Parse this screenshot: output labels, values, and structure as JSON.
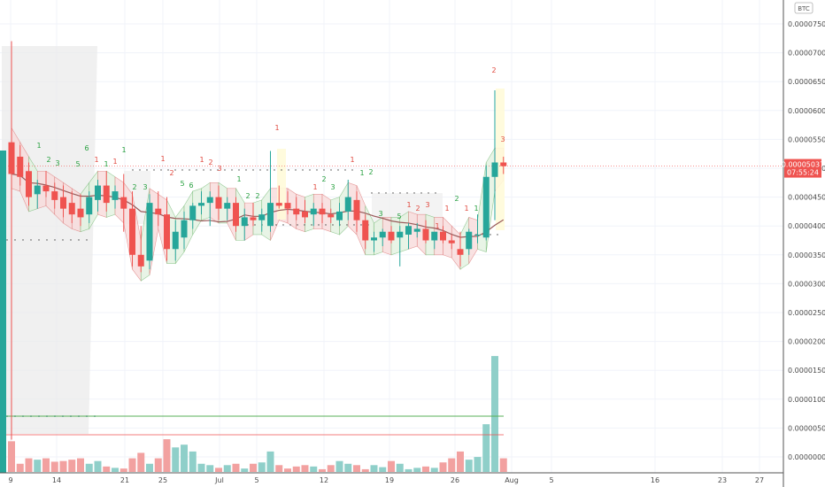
{
  "currency_badge": "BTC",
  "last_price_label": {
    "price": "0.00005037",
    "countdown": "07:55:24"
  },
  "colors": {
    "up": "#26a69a",
    "down": "#ef5350",
    "volume_up": "#8fcfc9",
    "volume_down": "#f2a1a0",
    "ma": "#9a5a5a",
    "resistance": "#58b058",
    "volume_avg": "#ef5350",
    "signal_up": "#27a03f",
    "signal_down": "#e0483e"
  },
  "chart_data": {
    "type": "candlestick",
    "y_axis": {
      "min": 1e-07,
      "max": 7.8e-06,
      "ticks": [
        "0.00007500",
        "0.00007000",
        "0.00006500",
        "0.00006000",
        "0.00005500",
        "0.00005000",
        "0.00004500",
        "0.00004000",
        "0.00003500",
        "0.00003000",
        "0.00002500",
        "0.00002000",
        "0.00001500",
        "0.00001000",
        "0.00000500",
        "0.00000000"
      ]
    },
    "x_axis": {
      "ticks": [
        "9",
        "14",
        "21",
        "25",
        "Jul",
        "5",
        "12",
        "19",
        "26",
        "Aug",
        "5",
        "16",
        "23",
        "27"
      ]
    },
    "resistance_level": 7.05e-06,
    "volume_average": 2.8e-07,
    "candles": [
      {
        "o": 5.45,
        "h": 7.2,
        "l": 0.3,
        "c": 4.9
      },
      {
        "o": 5.2,
        "h": 5.4,
        "l": 4.7,
        "c": 4.85
      },
      {
        "o": 4.95,
        "h": 5.1,
        "l": 4.35,
        "c": 4.5
      },
      {
        "o": 4.55,
        "h": 4.8,
        "l": 4.3,
        "c": 4.7
      },
      {
        "o": 4.7,
        "h": 4.95,
        "l": 4.5,
        "c": 4.6
      },
      {
        "o": 4.6,
        "h": 4.75,
        "l": 4.3,
        "c": 4.45
      },
      {
        "o": 4.5,
        "h": 4.7,
        "l": 4.15,
        "c": 4.3
      },
      {
        "o": 4.4,
        "h": 4.6,
        "l": 4.05,
        "c": 4.2
      },
      {
        "o": 4.3,
        "h": 4.55,
        "l": 4.0,
        "c": 4.15
      },
      {
        "o": 4.2,
        "h": 4.6,
        "l": 4.05,
        "c": 4.5
      },
      {
        "o": 4.45,
        "h": 4.8,
        "l": 4.25,
        "c": 4.7
      },
      {
        "o": 4.7,
        "h": 4.95,
        "l": 4.25,
        "c": 4.4
      },
      {
        "o": 4.45,
        "h": 4.7,
        "l": 4.3,
        "c": 4.6
      },
      {
        "o": 4.5,
        "h": 4.9,
        "l": 3.9,
        "c": 4.3
      },
      {
        "o": 4.3,
        "h": 4.6,
        "l": 3.3,
        "c": 3.5
      },
      {
        "o": 3.5,
        "h": 4.0,
        "l": 3.2,
        "c": 3.3
      },
      {
        "o": 3.4,
        "h": 4.55,
        "l": 3.25,
        "c": 4.4
      },
      {
        "o": 4.3,
        "h": 4.6,
        "l": 4.0,
        "c": 4.2
      },
      {
        "o": 4.2,
        "h": 4.5,
        "l": 3.4,
        "c": 3.6
      },
      {
        "o": 3.6,
        "h": 4.1,
        "l": 3.4,
        "c": 3.9
      },
      {
        "o": 3.8,
        "h": 4.25,
        "l": 3.6,
        "c": 4.1
      },
      {
        "o": 4.1,
        "h": 4.4,
        "l": 3.95,
        "c": 4.35
      },
      {
        "o": 4.35,
        "h": 4.6,
        "l": 4.2,
        "c": 4.4
      },
      {
        "o": 4.4,
        "h": 4.6,
        "l": 4.0,
        "c": 4.5
      },
      {
        "o": 4.5,
        "h": 4.7,
        "l": 4.1,
        "c": 4.3
      },
      {
        "o": 4.3,
        "h": 4.5,
        "l": 4.1,
        "c": 4.4
      },
      {
        "o": 4.4,
        "h": 4.5,
        "l": 3.9,
        "c": 4.0
      },
      {
        "o": 4.0,
        "h": 4.3,
        "l": 3.75,
        "c": 4.15
      },
      {
        "o": 4.15,
        "h": 4.4,
        "l": 4.0,
        "c": 4.1
      },
      {
        "o": 4.1,
        "h": 4.3,
        "l": 3.9,
        "c": 4.2
      },
      {
        "o": 4.0,
        "h": 5.3,
        "l": 3.9,
        "c": 4.4
      },
      {
        "o": 4.4,
        "h": 4.7,
        "l": 4.3,
        "c": 4.35
      },
      {
        "o": 4.4,
        "h": 4.6,
        "l": 4.2,
        "c": 4.3
      },
      {
        "o": 4.3,
        "h": 4.5,
        "l": 4.1,
        "c": 4.2
      },
      {
        "o": 4.25,
        "h": 4.45,
        "l": 4.05,
        "c": 4.15
      },
      {
        "o": 4.2,
        "h": 4.4,
        "l": 4.0,
        "c": 4.3
      },
      {
        "o": 4.3,
        "h": 4.4,
        "l": 4.05,
        "c": 4.2
      },
      {
        "o": 4.2,
        "h": 4.3,
        "l": 4.05,
        "c": 4.15
      },
      {
        "o": 4.1,
        "h": 4.4,
        "l": 4.0,
        "c": 4.25
      },
      {
        "o": 4.25,
        "h": 4.8,
        "l": 4.1,
        "c": 4.5
      },
      {
        "o": 4.45,
        "h": 4.6,
        "l": 3.9,
        "c": 4.1
      },
      {
        "o": 4.1,
        "h": 4.2,
        "l": 3.6,
        "c": 3.75
      },
      {
        "o": 3.75,
        "h": 3.9,
        "l": 3.55,
        "c": 3.8
      },
      {
        "o": 3.8,
        "h": 3.95,
        "l": 3.65,
        "c": 3.9
      },
      {
        "o": 3.9,
        "h": 4.0,
        "l": 3.7,
        "c": 3.75
      },
      {
        "o": 3.8,
        "h": 4.0,
        "l": 3.3,
        "c": 3.9
      },
      {
        "o": 3.85,
        "h": 4.05,
        "l": 3.6,
        "c": 4.0
      },
      {
        "o": 3.9,
        "h": 4.05,
        "l": 3.8,
        "c": 3.95
      },
      {
        "o": 3.95,
        "h": 4.1,
        "l": 3.7,
        "c": 3.75
      },
      {
        "o": 3.75,
        "h": 3.9,
        "l": 3.6,
        "c": 3.9
      },
      {
        "o": 3.9,
        "h": 4.0,
        "l": 3.7,
        "c": 3.75
      },
      {
        "o": 3.75,
        "h": 3.85,
        "l": 3.6,
        "c": 3.7
      },
      {
        "o": 3.6,
        "h": 3.9,
        "l": 3.3,
        "c": 3.5
      },
      {
        "o": 3.6,
        "h": 3.95,
        "l": 3.5,
        "c": 3.9
      },
      {
        "o": 3.85,
        "h": 4.2,
        "l": 3.7,
        "c": 3.85
      },
      {
        "o": 3.8,
        "h": 5.05,
        "l": 3.75,
        "c": 4.85
      },
      {
        "o": 4.85,
        "h": 6.35,
        "l": 4.1,
        "c": 5.1
      },
      {
        "o": 5.1,
        "h": 5.2,
        "l": 4.9,
        "c": 5.037
      }
    ],
    "volumes": [
      0.45,
      0.12,
      0.2,
      0.18,
      0.2,
      0.15,
      0.16,
      0.18,
      0.2,
      0.12,
      0.16,
      0.08,
      0.06,
      0.05,
      0.2,
      0.28,
      0.12,
      0.2,
      0.48,
      0.36,
      0.4,
      0.3,
      0.12,
      0.1,
      0.06,
      0.1,
      0.12,
      0.05,
      0.12,
      0.14,
      0.3,
      0.1,
      0.05,
      0.08,
      0.1,
      0.08,
      0.04,
      0.1,
      0.16,
      0.12,
      0.1,
      0.04,
      0.1,
      0.07,
      0.16,
      0.12,
      0.04,
      0.06,
      0.08,
      0.06,
      0.14,
      0.2,
      0.3,
      0.18,
      0.22,
      0.7,
      1.7,
      0.2
    ]
  }
}
